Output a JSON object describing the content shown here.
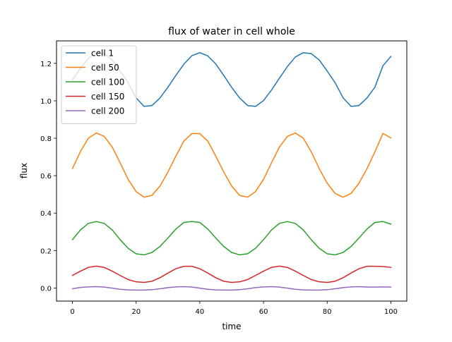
{
  "chart_data": {
    "type": "line",
    "title": "flux of water in cell whole",
    "xlabel": "time",
    "ylabel": "flux",
    "xlim": [
      -5,
      105
    ],
    "ylim": [
      -0.07,
      1.32
    ],
    "xticks": [
      0,
      20,
      40,
      60,
      80,
      100
    ],
    "xtick_labels": [
      "0",
      "20",
      "40",
      "60",
      "80",
      "100"
    ],
    "yticks": [
      0.0,
      0.2,
      0.4,
      0.6,
      0.8,
      1.0,
      1.2
    ],
    "ytick_labels": [
      "0.0",
      "0.2",
      "0.4",
      "0.6",
      "0.8",
      "1.0",
      "1.2"
    ],
    "grid": false,
    "legend_position": "top-left",
    "x": [
      0,
      2.5,
      5,
      7.5,
      10,
      12.5,
      15,
      17.5,
      20,
      22.5,
      25,
      27.5,
      30,
      32.5,
      35,
      37.5,
      40,
      42.5,
      45,
      47.5,
      50,
      52.5,
      55,
      57.5,
      60,
      62.5,
      65,
      67.5,
      70,
      72.5,
      75,
      77.5,
      80,
      82.5,
      85,
      87.5,
      90,
      92.5,
      95,
      97.5,
      100
    ],
    "series": [
      {
        "name": "cell 1",
        "color": "#1f77b4",
        "values": [
          1.112,
          1.173,
          1.226,
          1.255,
          1.252,
          1.218,
          1.159,
          1.096,
          1.016,
          0.97,
          0.975,
          1.015,
          1.073,
          1.136,
          1.196,
          1.241,
          1.257,
          1.24,
          1.197,
          1.136,
          1.072,
          1.015,
          0.975,
          0.97,
          1.001,
          1.057,
          1.121,
          1.183,
          1.234,
          1.257,
          1.252,
          1.218,
          1.159,
          1.096,
          1.016,
          0.97,
          0.975,
          1.015,
          1.073,
          1.187,
          1.237
        ]
      },
      {
        "name": "cell 50",
        "color": "#ff7f0e",
        "values": [
          0.638,
          0.728,
          0.8,
          0.828,
          0.81,
          0.753,
          0.668,
          0.58,
          0.515,
          0.485,
          0.495,
          0.545,
          0.62,
          0.705,
          0.785,
          0.825,
          0.825,
          0.785,
          0.705,
          0.62,
          0.545,
          0.495,
          0.485,
          0.515,
          0.58,
          0.668,
          0.753,
          0.81,
          0.828,
          0.8,
          0.728,
          0.638,
          0.56,
          0.505,
          0.485,
          0.505,
          0.56,
          0.638,
          0.728,
          0.826,
          0.801
        ]
      },
      {
        "name": "cell 100",
        "color": "#2ca02c",
        "values": [
          0.258,
          0.31,
          0.345,
          0.355,
          0.345,
          0.31,
          0.258,
          0.212,
          0.183,
          0.177,
          0.19,
          0.222,
          0.267,
          0.315,
          0.35,
          0.355,
          0.35,
          0.315,
          0.267,
          0.222,
          0.19,
          0.177,
          0.183,
          0.212,
          0.258,
          0.31,
          0.345,
          0.355,
          0.345,
          0.31,
          0.258,
          0.212,
          0.183,
          0.177,
          0.19,
          0.222,
          0.267,
          0.315,
          0.35,
          0.355,
          0.341
        ]
      },
      {
        "name": "cell 150",
        "color": "#d62728",
        "values": [
          0.067,
          0.09,
          0.11,
          0.117,
          0.11,
          0.09,
          0.067,
          0.045,
          0.033,
          0.03,
          0.036,
          0.055,
          0.08,
          0.103,
          0.116,
          0.116,
          0.103,
          0.08,
          0.055,
          0.036,
          0.03,
          0.033,
          0.045,
          0.067,
          0.09,
          0.11,
          0.117,
          0.11,
          0.09,
          0.067,
          0.045,
          0.033,
          0.03,
          0.036,
          0.055,
          0.08,
          0.103,
          0.116,
          0.116,
          0.115,
          0.11
        ]
      },
      {
        "name": "cell 200",
        "color": "#9467bd",
        "values": [
          -0.004,
          0.003,
          0.006,
          0.007,
          0.005,
          -0.001,
          -0.007,
          -0.01,
          -0.011,
          -0.011,
          -0.009,
          -0.004,
          0.002,
          0.006,
          0.007,
          0.005,
          -0.001,
          -0.007,
          -0.01,
          -0.011,
          -0.011,
          -0.009,
          -0.004,
          0.002,
          0.006,
          0.007,
          0.005,
          -0.001,
          -0.007,
          -0.01,
          -0.011,
          -0.011,
          -0.009,
          -0.004,
          0.002,
          0.006,
          0.007,
          0.005,
          0.005,
          0.006,
          0.005
        ]
      }
    ]
  }
}
